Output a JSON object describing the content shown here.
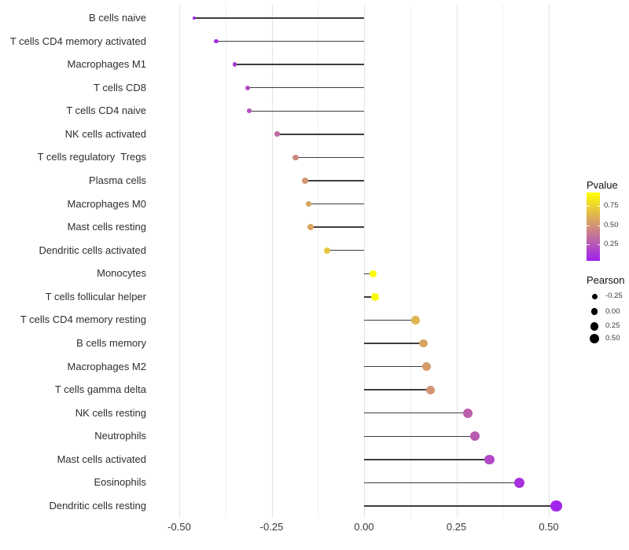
{
  "chart_data": {
    "type": "lollipop",
    "title": "",
    "xlabel": "",
    "ylabel": "",
    "x_tick_values": [
      -0.5,
      -0.25,
      0.0,
      0.25,
      0.5
    ],
    "x_tick_labels": [
      "-0.50",
      "-0.25",
      "0.00",
      "0.25",
      "0.50"
    ],
    "xlim": [
      -0.51,
      0.57
    ],
    "grid": "vertical major and minor gridlines only, light gray on white",
    "stem_origin": 0.0,
    "rows": [
      {
        "label": "B cells naive",
        "pearson": -0.46,
        "pvalue": 0.05
      },
      {
        "label": "T cells CD4 memory activated",
        "pearson": -0.4,
        "pvalue": 0.09
      },
      {
        "label": "Macrophages M1",
        "pearson": -0.35,
        "pvalue": 0.14
      },
      {
        "label": "T cells CD8",
        "pearson": -0.315,
        "pvalue": 0.21
      },
      {
        "label": "T cells CD4 naive",
        "pearson": -0.31,
        "pvalue": 0.21
      },
      {
        "label": "NK cells activated",
        "pearson": -0.235,
        "pvalue": 0.32
      },
      {
        "label": "T cells regulatory  Tregs",
        "pearson": -0.185,
        "pvalue": 0.45
      },
      {
        "label": "Plasma cells",
        "pearson": -0.16,
        "pvalue": 0.51
      },
      {
        "label": "Macrophages M0",
        "pearson": -0.15,
        "pvalue": 0.57
      },
      {
        "label": "Mast cells resting",
        "pearson": -0.145,
        "pvalue": 0.57
      },
      {
        "label": "Dendritic cells activated",
        "pearson": -0.1,
        "pvalue": 0.7
      },
      {
        "label": "Monocytes",
        "pearson": 0.025,
        "pvalue": 0.91
      },
      {
        "label": "T cells follicular helper",
        "pearson": 0.03,
        "pvalue": 0.91
      },
      {
        "label": "T cells CD4 memory resting",
        "pearson": 0.14,
        "pvalue": 0.63
      },
      {
        "label": "B cells memory",
        "pearson": 0.16,
        "pvalue": 0.56
      },
      {
        "label": "Macrophages M2",
        "pearson": 0.17,
        "pvalue": 0.53
      },
      {
        "label": "T cells gamma delta",
        "pearson": 0.18,
        "pvalue": 0.5
      },
      {
        "label": "NK cells resting",
        "pearson": 0.28,
        "pvalue": 0.29
      },
      {
        "label": "Neutrophils",
        "pearson": 0.3,
        "pvalue": 0.27
      },
      {
        "label": "Mast cells activated",
        "pearson": 0.34,
        "pvalue": 0.19
      },
      {
        "label": "Eosinophils",
        "pearson": 0.42,
        "pvalue": 0.1
      },
      {
        "label": "Dendritic cells resting",
        "pearson": 0.52,
        "pvalue": 0.05
      }
    ],
    "color_scale": {
      "maps": "pvalue",
      "low_color": "#A020F0",
      "high_color": "#FFFF00",
      "domain": [
        0.03,
        0.93
      ]
    },
    "size_scale": {
      "maps": "pearson"
    },
    "legends": {
      "pvalue": {
        "title": "Pvalue",
        "tick_labels": [
          "0.75",
          "0.50",
          "0.25"
        ],
        "tick_values": [
          0.75,
          0.5,
          0.25
        ],
        "position": "right"
      },
      "pearson": {
        "title": "Pearson",
        "items": [
          {
            "label": "-0.25",
            "value": -0.25
          },
          {
            "label": "0.00",
            "value": 0.0
          },
          {
            "label": "0.25",
            "value": 0.25
          },
          {
            "label": "0.50",
            "value": 0.5
          }
        ],
        "dot_color": "#000000",
        "position": "right"
      }
    },
    "stem_color": "#3d3d3d",
    "background": "#ffffff"
  }
}
